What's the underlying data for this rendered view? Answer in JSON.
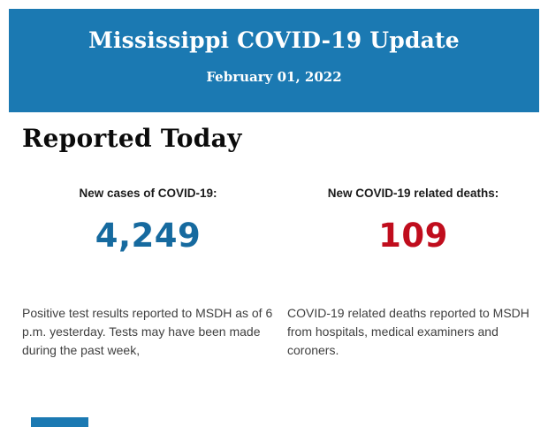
{
  "header": {
    "title": "Mississippi COVID-19 Update",
    "date": "February 01, 2022",
    "bg_color": "#1b79b2",
    "text_color": "#ffffff"
  },
  "section": {
    "heading": "Reported Today"
  },
  "stats": [
    {
      "label": "New cases of COVID-19:",
      "value": "4,249",
      "value_color": "#166a9f",
      "description": "Positive test results reported to MSDH as of 6 p.m. yesterday. Tests may have been made during the past week,"
    },
    {
      "label": "New COVID-19 related deaths:",
      "value": "109",
      "value_color": "#c00d1d",
      "description": "COVID-19 related deaths reported to MSDH from hospitals, medical examiners and coroners."
    }
  ],
  "footer": {
    "partial_bar_color": "#1b79b2"
  }
}
